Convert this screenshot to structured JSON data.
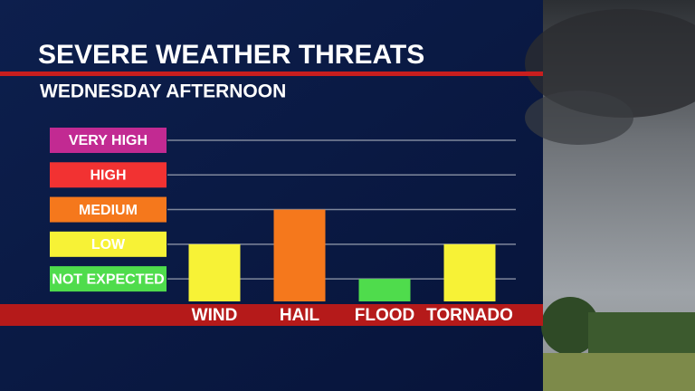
{
  "chart_data": {
    "type": "bar",
    "title": "SEVERE WEATHER THREATS",
    "subtitle": "WEDNESDAY AFTERNOON",
    "categories": [
      "WIND",
      "HAIL",
      "FLOOD",
      "TORNADO"
    ],
    "values": [
      2,
      3,
      1,
      2
    ],
    "colors": [
      "#f7f236",
      "#f5781c",
      "#4fdc4c",
      "#f7f236"
    ],
    "ylim": [
      0.35,
      5
    ],
    "yticks": [
      {
        "value": 1,
        "label": "NOT EXPECTED"
      },
      {
        "value": 2,
        "label": "LOW"
      },
      {
        "value": 3,
        "label": "MEDIUM"
      },
      {
        "value": 4,
        "label": "HIGH"
      },
      {
        "value": 5,
        "label": "VERY HIGH"
      }
    ],
    "ytick_colors": [
      "#4fdc4c",
      "#f7f236",
      "#f5781c",
      "#f23232",
      "#c22a92"
    ],
    "grid": true
  }
}
